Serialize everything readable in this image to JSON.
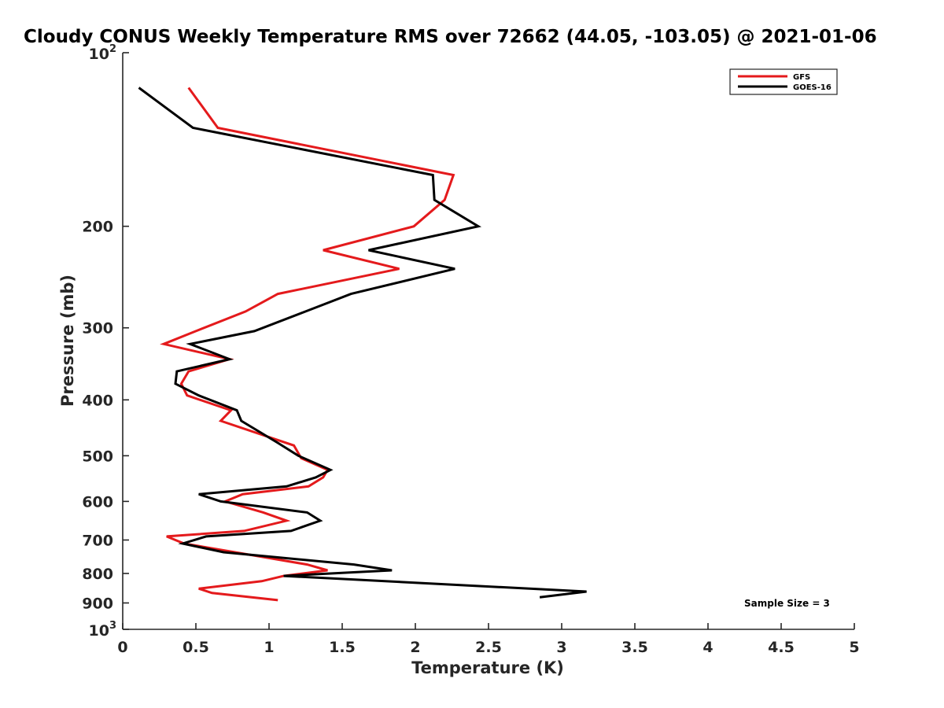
{
  "chart_data": {
    "type": "line",
    "title": "Cloudy CONUS Weekly Temperature RMS over 72662 (44.05, -103.05) @ 2021-01-06",
    "xlabel": "Temperature (K)",
    "ylabel": "Pressure (mb)",
    "xlim": [
      0,
      5
    ],
    "ylim": [
      100,
      1000
    ],
    "y_scale": "log",
    "y_reversed": true,
    "grid": false,
    "legend_position": "top-right",
    "x_ticks": [
      "0",
      "0.5",
      "1",
      "1.5",
      "2",
      "2.5",
      "3",
      "3.5",
      "4",
      "4.5",
      "5"
    ],
    "y_ticks": [
      {
        "value": 100,
        "base": "10",
        "exp": "2"
      },
      {
        "value": 200,
        "label": "200"
      },
      {
        "value": 300,
        "label": "300"
      },
      {
        "value": 400,
        "label": "400"
      },
      {
        "value": 500,
        "label": "500"
      },
      {
        "value": 600,
        "label": "600"
      },
      {
        "value": 700,
        "label": "700"
      },
      {
        "value": 800,
        "label": "800"
      },
      {
        "value": 900,
        "label": "900"
      },
      {
        "value": 1000,
        "base": "10",
        "exp": "3"
      }
    ],
    "annotation": "Sample Size = 3",
    "series": [
      {
        "name": "GFS",
        "color": "#e41a1c",
        "points": [
          [
            0.45,
            115
          ],
          [
            0.65,
            135
          ],
          [
            2.26,
            163
          ],
          [
            2.2,
            180
          ],
          [
            1.99,
            200
          ],
          [
            1.37,
            220
          ],
          [
            1.89,
            237
          ],
          [
            1.06,
            262
          ],
          [
            0.84,
            281
          ],
          [
            0.5,
            304
          ],
          [
            0.28,
            320
          ],
          [
            0.73,
            340
          ],
          [
            0.45,
            357
          ],
          [
            0.4,
            375
          ],
          [
            0.44,
            393
          ],
          [
            0.74,
            417
          ],
          [
            0.67,
            435
          ],
          [
            1.17,
            480
          ],
          [
            1.22,
            505
          ],
          [
            1.4,
            529
          ],
          [
            1.37,
            545
          ],
          [
            1.27,
            565
          ],
          [
            0.82,
            583
          ],
          [
            0.7,
            600
          ],
          [
            0.96,
            627
          ],
          [
            1.12,
            648
          ],
          [
            0.83,
            675
          ],
          [
            0.3,
            690
          ],
          [
            0.42,
            710
          ],
          [
            1.26,
            772
          ],
          [
            1.4,
            790
          ],
          [
            1.1,
            808
          ],
          [
            0.95,
            825
          ],
          [
            0.52,
            850
          ],
          [
            0.61,
            865
          ],
          [
            1.06,
            890
          ]
        ]
      },
      {
        "name": "GOES-16",
        "color": "#000000",
        "points": [
          [
            0.11,
            115
          ],
          [
            0.48,
            135
          ],
          [
            2.12,
            163
          ],
          [
            2.13,
            180
          ],
          [
            2.43,
            200
          ],
          [
            1.68,
            220
          ],
          [
            2.27,
            237
          ],
          [
            1.56,
            262
          ],
          [
            1.25,
            281
          ],
          [
            0.9,
            304
          ],
          [
            0.46,
            320
          ],
          [
            0.73,
            340
          ],
          [
            0.37,
            357
          ],
          [
            0.36,
            375
          ],
          [
            0.52,
            393
          ],
          [
            0.78,
            417
          ],
          [
            0.81,
            435
          ],
          [
            1.06,
            475
          ],
          [
            1.2,
            500
          ],
          [
            1.42,
            529
          ],
          [
            1.32,
            545
          ],
          [
            1.12,
            565
          ],
          [
            0.52,
            583
          ],
          [
            0.67,
            600
          ],
          [
            1.26,
            627
          ],
          [
            1.35,
            648
          ],
          [
            1.15,
            675
          ],
          [
            0.57,
            690
          ],
          [
            0.41,
            710
          ],
          [
            0.69,
            735
          ],
          [
            1.58,
            772
          ],
          [
            1.84,
            790
          ],
          [
            1.1,
            808
          ],
          [
            3.17,
            860
          ],
          [
            2.85,
            880
          ]
        ]
      }
    ]
  }
}
